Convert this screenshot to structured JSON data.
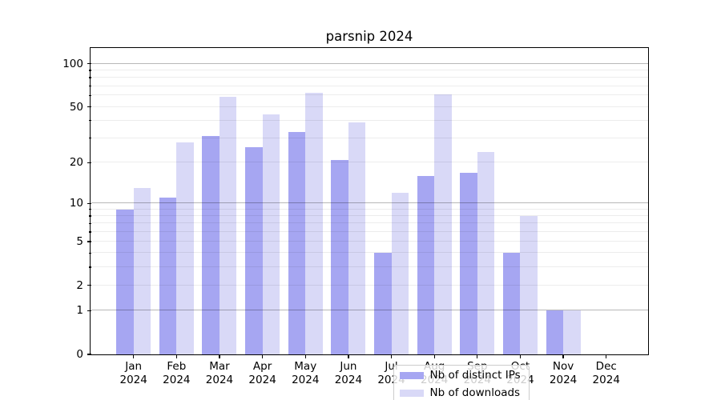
{
  "chart_data": {
    "type": "bar",
    "title": "parsnip 2024",
    "categories": [
      "Jan 2024",
      "Feb 2024",
      "Mar 2024",
      "Apr 2024",
      "May 2024",
      "Jun 2024",
      "Jul 2024",
      "Aug 2024",
      "Sep 2024",
      "Oct 2024",
      "Nov 2024",
      "Dec 2024"
    ],
    "series": [
      {
        "name": "Nb of distinct IPs",
        "color": "#a6a6f2",
        "values": [
          9,
          11,
          31,
          26,
          33,
          21,
          4,
          16,
          17,
          4,
          1,
          0
        ]
      },
      {
        "name": "Nb of downloads",
        "color": "#d9d9f7",
        "values": [
          13,
          28,
          59,
          44,
          63,
          39,
          12,
          61,
          24,
          8,
          1,
          0
        ]
      }
    ],
    "xlabel": "",
    "ylabel": "",
    "yscale": "log1p",
    "ylim": [
      0,
      128
    ],
    "yticks": [
      0,
      1,
      2,
      5,
      10,
      20,
      50,
      100
    ],
    "ytick_labels": [
      "0",
      "1",
      "2",
      "5",
      "10",
      "20",
      "50",
      "100"
    ],
    "grid_major_at": [
      1,
      10,
      100
    ],
    "grid_minor_at": [
      2,
      3,
      4,
      5,
      6,
      7,
      8,
      9,
      20,
      30,
      40,
      50,
      60,
      70,
      80,
      90
    ],
    "grid": "on",
    "legend_position": "lower center",
    "legend": {
      "entries": [
        "Nb of distinct IPs",
        "Nb of downloads"
      ]
    }
  }
}
